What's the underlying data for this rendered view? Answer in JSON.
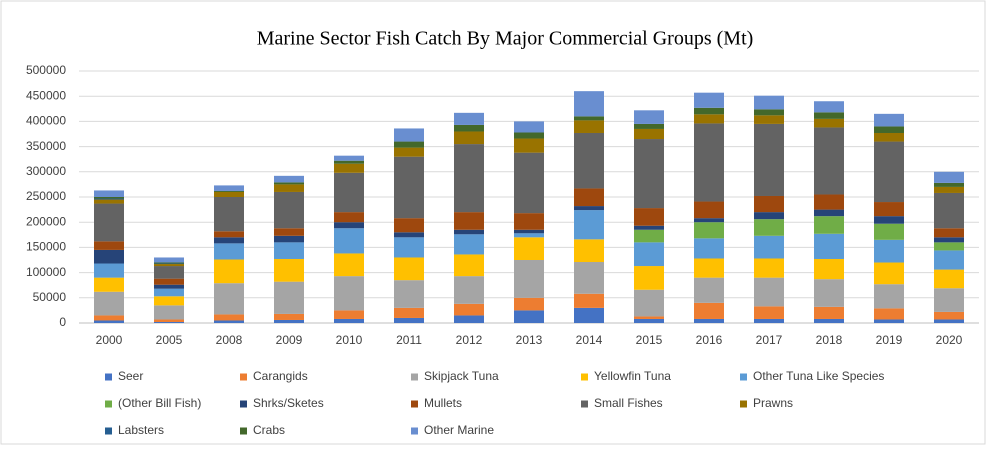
{
  "chart_data": {
    "type": "stacked_bar",
    "title": "Marine Sector Fish Catch By Major Commercial Groups (Mt)",
    "categories": [
      "2000",
      "2005",
      "2008",
      "2009",
      "2010",
      "2011",
      "2012",
      "2013",
      "2014",
      "2015",
      "2016",
      "2017",
      "2018",
      "2019",
      "2020"
    ],
    "ylim": [
      0,
      500000
    ],
    "yticks": [
      0,
      50000,
      100000,
      150000,
      200000,
      250000,
      300000,
      350000,
      400000,
      450000,
      500000
    ],
    "grid": true,
    "legend": "bottom",
    "series": [
      {
        "name": "Seer",
        "color": "#4472c4",
        "values": [
          5000,
          2000,
          5000,
          6000,
          8000,
          10000,
          15000,
          25000,
          30000,
          8000,
          8000,
          8000,
          8000,
          7000,
          7000
        ]
      },
      {
        "name": "Carangids",
        "color": "#ed7d31",
        "values": [
          10000,
          5000,
          12000,
          12000,
          17000,
          20000,
          23000,
          25000,
          28000,
          5000,
          32000,
          25000,
          24000,
          22000,
          15000
        ]
      },
      {
        "name": "Skipjack Tuna",
        "color": "#a5a5a5",
        "values": [
          47000,
          28000,
          62000,
          64000,
          68000,
          55000,
          55000,
          75000,
          63000,
          53000,
          50000,
          57000,
          55000,
          48000,
          47000
        ]
      },
      {
        "name": "Yellowfin Tuna",
        "color": "#ffc000",
        "values": [
          28000,
          18000,
          47000,
          45000,
          45000,
          45000,
          43000,
          45000,
          45000,
          47000,
          38000,
          38000,
          40000,
          43000,
          37000
        ]
      },
      {
        "name": "Other Tuna Like Species",
        "color": "#5b9bd5",
        "values": [
          28000,
          15000,
          32000,
          33000,
          50000,
          40000,
          40000,
          8000,
          58000,
          47000,
          40000,
          45000,
          50000,
          45000,
          38000
        ]
      },
      {
        "name": "(Other Bill Fish)",
        "color": "#70ad47",
        "values": [
          0,
          0,
          0,
          0,
          0,
          0,
          0,
          0,
          0,
          25000,
          32000,
          33000,
          35000,
          32000,
          16000
        ]
      },
      {
        "name": "Shrks/Sketes",
        "color": "#264478",
        "values": [
          27000,
          8000,
          12000,
          13000,
          12000,
          10000,
          9000,
          7000,
          8000,
          8000,
          8000,
          14000,
          13000,
          15000,
          10000
        ]
      },
      {
        "name": "Mullets",
        "color": "#9e480e",
        "values": [
          17000,
          12000,
          12000,
          15000,
          20000,
          28000,
          35000,
          33000,
          35000,
          35000,
          33000,
          32000,
          30000,
          28000,
          18000
        ]
      },
      {
        "name": "Small Fishes",
        "color": "#636363",
        "values": [
          75000,
          25000,
          68000,
          72000,
          78000,
          122000,
          135000,
          120000,
          110000,
          137000,
          155000,
          143000,
          133000,
          120000,
          70000
        ]
      },
      {
        "name": "Prawns",
        "color": "#997300",
        "values": [
          8000,
          4000,
          10000,
          15000,
          18000,
          18000,
          25000,
          28000,
          25000,
          20000,
          18000,
          17000,
          17000,
          17000,
          12000
        ]
      },
      {
        "name": "Labsters",
        "color": "#255e91",
        "values": [
          2000,
          1000,
          0,
          0,
          0,
          0,
          0,
          0,
          0,
          0,
          0,
          0,
          0,
          0,
          0
        ]
      },
      {
        "name": "Crabs",
        "color": "#43682b",
        "values": [
          3000,
          2000,
          2000,
          4000,
          6000,
          12000,
          13000,
          12000,
          8000,
          10000,
          13000,
          12000,
          13000,
          13000,
          8000
        ]
      },
      {
        "name": "Other Marine",
        "color": "#698ed0",
        "values": [
          13000,
          10000,
          11000,
          13000,
          10000,
          26000,
          24000,
          22000,
          50000,
          27000,
          30000,
          27000,
          22000,
          25000,
          22000
        ]
      }
    ]
  }
}
